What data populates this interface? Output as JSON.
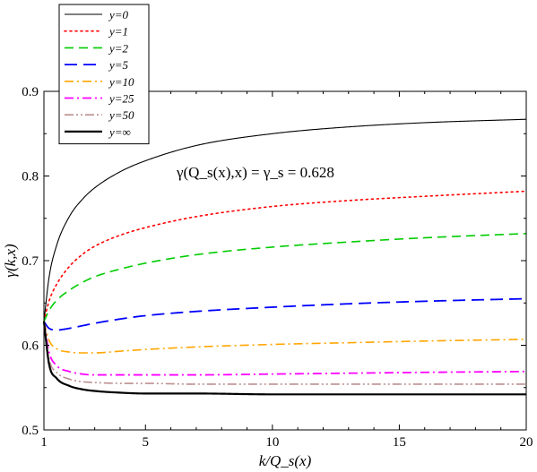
{
  "chart_data": {
    "type": "line",
    "title": "",
    "xlabel": "k/Q_s(x)",
    "ylabel": "γ(k,x)",
    "annotation": "γ(Q_s(x),x) = γ_s = 0.628",
    "xlim": [
      1,
      20
    ],
    "ylim": [
      0.5,
      0.9
    ],
    "xticks": [
      1,
      5,
      10,
      15,
      20
    ],
    "yticks": [
      0.5,
      0.6,
      0.7,
      0.8,
      0.9
    ],
    "xtick_labels": [
      "1",
      "5",
      "10",
      "15",
      "20"
    ],
    "ytick_labels": [
      "0.5",
      "0.6",
      "0.7",
      "0.8",
      "0.9"
    ],
    "grid": false,
    "legend_position": "top-left",
    "x": [
      1.0,
      1.2,
      1.5,
      2.0,
      2.5,
      3.0,
      4.0,
      5.0,
      7.0,
      10.0,
      13.0,
      16.0,
      20.0
    ],
    "series": [
      {
        "name": "y=0",
        "color": "#000000",
        "dash": "solid",
        "width": 1.1,
        "values": [
          0.628,
          0.68,
          0.718,
          0.752,
          0.772,
          0.786,
          0.805,
          0.818,
          0.836,
          0.85,
          0.858,
          0.863,
          0.867
        ]
      },
      {
        "name": "y=1",
        "color": "#ff0000",
        "dash": "dotted",
        "width": 1.6,
        "values": [
          0.628,
          0.652,
          0.672,
          0.693,
          0.707,
          0.717,
          0.73,
          0.739,
          0.752,
          0.764,
          0.771,
          0.776,
          0.782
        ]
      },
      {
        "name": "y=2",
        "color": "#00cc00",
        "dash": "dashed",
        "width": 1.6,
        "values": [
          0.628,
          0.641,
          0.653,
          0.665,
          0.674,
          0.681,
          0.69,
          0.697,
          0.707,
          0.716,
          0.722,
          0.727,
          0.732
        ]
      },
      {
        "name": "y=5",
        "color": "#0000ff",
        "dash": "longdash",
        "width": 1.8,
        "values": [
          0.628,
          0.62,
          0.618,
          0.62,
          0.623,
          0.626,
          0.631,
          0.635,
          0.64,
          0.645,
          0.649,
          0.652,
          0.655
        ]
      },
      {
        "name": "y=10",
        "color": "#ffa500",
        "dash": "dashdot",
        "width": 1.6,
        "values": [
          0.628,
          0.606,
          0.596,
          0.592,
          0.591,
          0.591,
          0.593,
          0.595,
          0.598,
          0.601,
          0.603,
          0.605,
          0.607
        ]
      },
      {
        "name": "y=25",
        "color": "#ff00ff",
        "dash": "dashdot",
        "width": 1.8,
        "values": [
          0.628,
          0.592,
          0.576,
          0.569,
          0.566,
          0.565,
          0.565,
          0.565,
          0.565,
          0.566,
          0.567,
          0.568,
          0.569
        ]
      },
      {
        "name": "y=50",
        "color": "#bc8f8f",
        "dash": "dashdotdot",
        "width": 1.6,
        "values": [
          0.628,
          0.584,
          0.568,
          0.56,
          0.557,
          0.556,
          0.555,
          0.555,
          0.554,
          0.554,
          0.554,
          0.554,
          0.554
        ]
      },
      {
        "name": "y=∞",
        "color": "#000000",
        "dash": "solid",
        "width": 2.2,
        "values": [
          0.628,
          0.578,
          0.561,
          0.552,
          0.548,
          0.546,
          0.544,
          0.543,
          0.543,
          0.542,
          0.542,
          0.542,
          0.542
        ]
      }
    ]
  }
}
